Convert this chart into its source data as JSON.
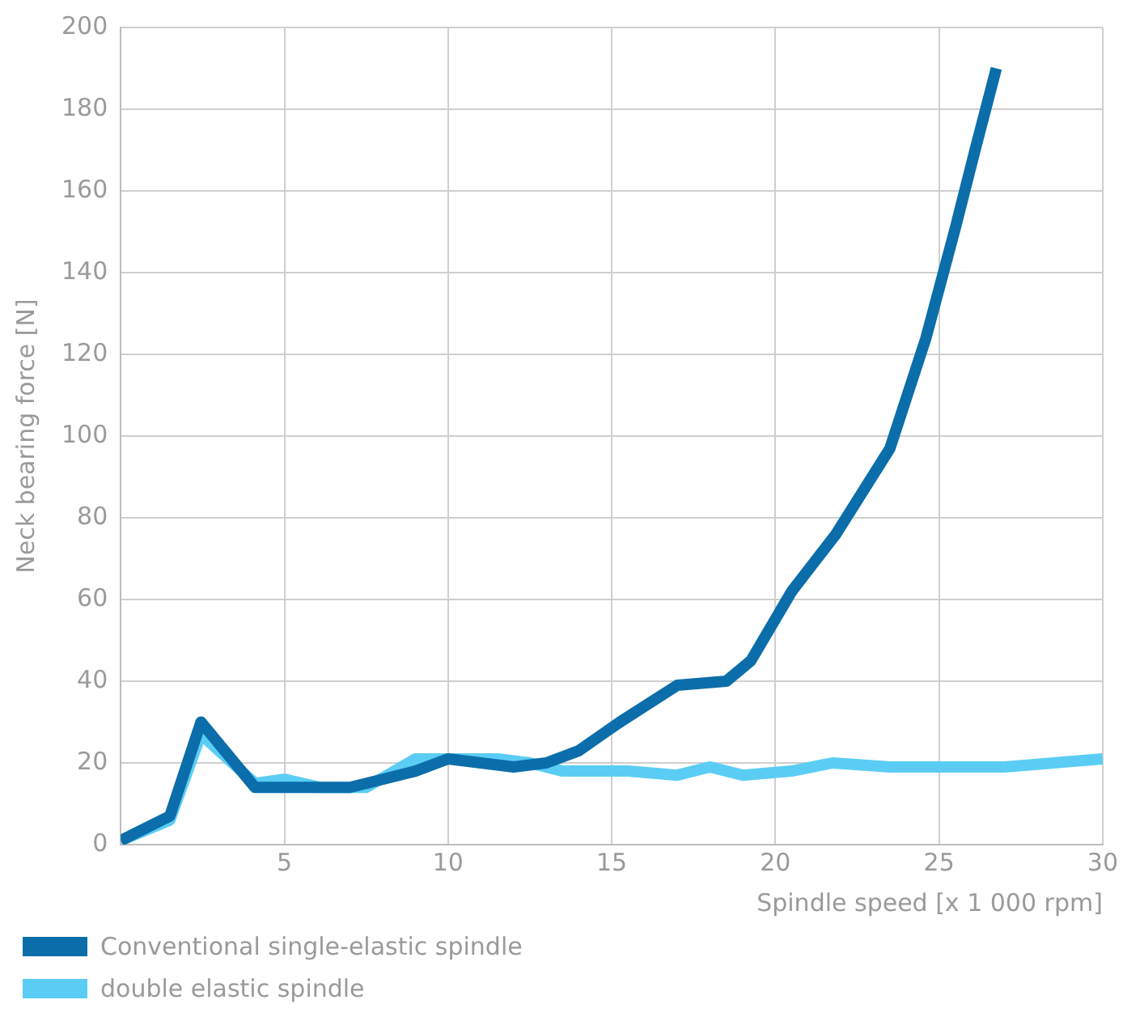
{
  "chart_data": {
    "type": "line",
    "xlabel": "Spindle speed [x 1 000 rpm]",
    "ylabel": "Neck bearing force [N]",
    "xlim": [
      0,
      30
    ],
    "xticks": [
      5,
      10,
      15,
      20,
      25,
      30
    ],
    "ylim": [
      0,
      200
    ],
    "yticks": [
      0,
      20,
      40,
      60,
      80,
      100,
      120,
      140,
      160,
      180,
      200
    ],
    "grid": true,
    "legend": "bottom",
    "marker": "none",
    "line_style": "solid",
    "series": [
      {
        "name": "Conventional single-elastic spindle",
        "color": "#0b6eaa",
        "x": [
          0,
          1.5,
          2.45,
          4.1,
          5,
          7,
          8,
          9,
          10,
          12,
          13,
          14,
          15.25,
          17,
          18.5,
          19.25,
          20.5,
          21.85,
          23.5,
          24.6,
          25.5,
          26.1,
          26.75
        ],
        "values": [
          1,
          7,
          30,
          14,
          14,
          14,
          16,
          18,
          21,
          19,
          20,
          23,
          30,
          39,
          40,
          45,
          62,
          76,
          97,
          124,
          151,
          170,
          190
        ]
      },
      {
        "name": "double elastic spindle",
        "color": "#5bcdf5",
        "x": [
          0,
          1.5,
          2.45,
          4.1,
          5,
          6.1,
          7.5,
          9,
          10,
          11.5,
          12.5,
          13.5,
          15.5,
          17,
          18,
          19,
          20.5,
          21.75,
          23.5,
          25.5,
          27,
          28.5,
          30
        ],
        "values": [
          1,
          6,
          27,
          15,
          16,
          14,
          14,
          21,
          21,
          21,
          20,
          18,
          18,
          17,
          19,
          17,
          18,
          20,
          19,
          19,
          19,
          20,
          21
        ]
      }
    ]
  }
}
